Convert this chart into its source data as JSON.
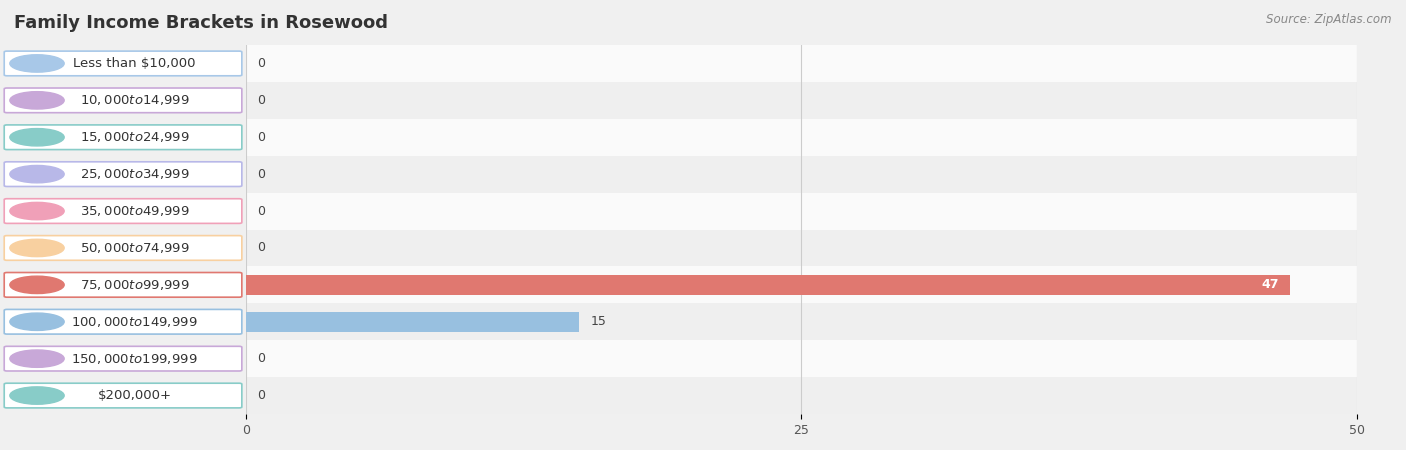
{
  "title": "Family Income Brackets in Rosewood",
  "source": "Source: ZipAtlas.com",
  "categories": [
    "Less than $10,000",
    "$10,000 to $14,999",
    "$15,000 to $24,999",
    "$25,000 to $34,999",
    "$35,000 to $49,999",
    "$50,000 to $74,999",
    "$75,000 to $99,999",
    "$100,000 to $149,999",
    "$150,000 to $199,999",
    "$200,000+"
  ],
  "values": [
    0,
    0,
    0,
    0,
    0,
    0,
    47,
    15,
    0,
    0
  ],
  "bar_colors": [
    "#a8c8e8",
    "#c8a8d8",
    "#88ccc8",
    "#b8b8e8",
    "#f0a0b8",
    "#f8d0a0",
    "#e07870",
    "#98c0e0",
    "#c8a8d8",
    "#88ccc8"
  ],
  "background_color": "#f0f0f0",
  "row_bg_light": "#fafafa",
  "row_bg_dark": "#efefef",
  "xlim": [
    0,
    50
  ],
  "xticks": [
    0,
    25,
    50
  ],
  "title_fontsize": 13,
  "label_fontsize": 10,
  "value_fontsize": 9,
  "bar_height": 0.55,
  "figsize": [
    14.06,
    4.5
  ],
  "dpi": 100
}
